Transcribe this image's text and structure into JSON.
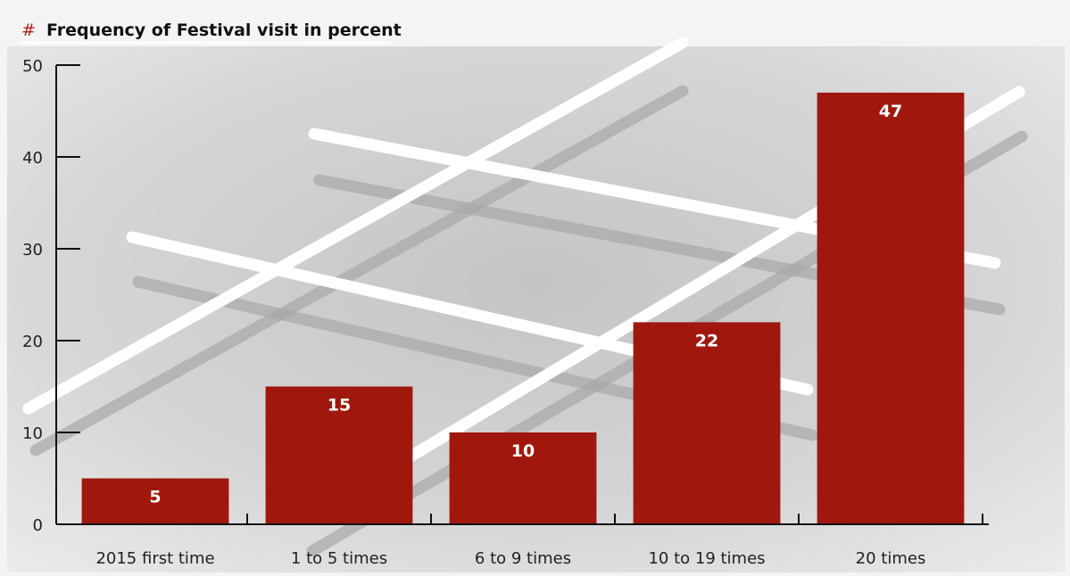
{
  "chart_data": {
    "type": "bar",
    "title": "Frequency of Festival visit in percent",
    "title_prefix": "#",
    "categories": [
      "2015 first time",
      "1 to 5 times",
      "6 to 9 times",
      "10 to 19 times",
      "20 times"
    ],
    "values": [
      5,
      15,
      10,
      22,
      47
    ],
    "ylim": [
      0,
      50
    ],
    "yticks": [
      0,
      10,
      20,
      30,
      40,
      50
    ],
    "data_labels": true,
    "grid": false,
    "colors": {
      "bar": "#a0180d",
      "axis": "#111111",
      "accent": "#b3201a",
      "background": "#d8d8d8"
    }
  }
}
